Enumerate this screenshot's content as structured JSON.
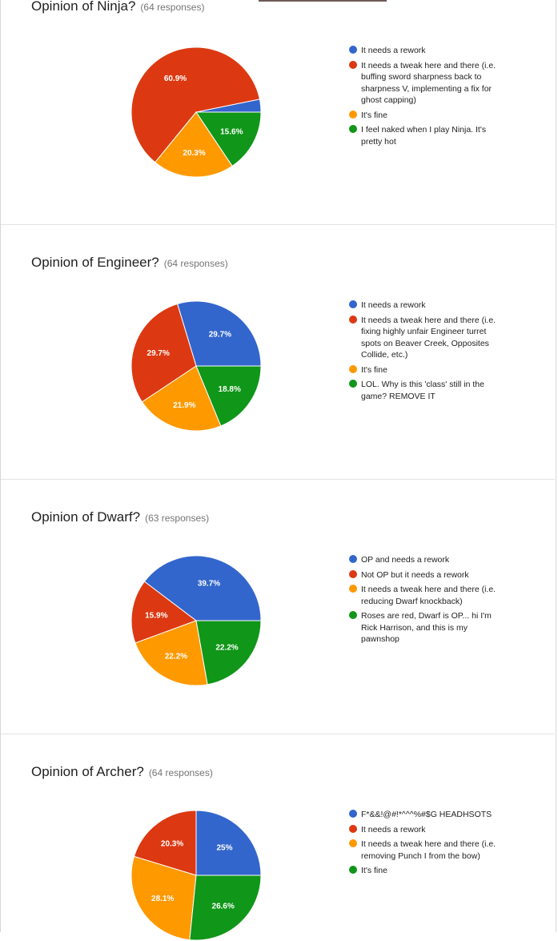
{
  "colors": [
    "#3366cc",
    "#dc3912",
    "#ff9900",
    "#109618"
  ],
  "cards": [
    {
      "title": "Opinion of Ninja?",
      "responses": "(64 responses)",
      "legend": [
        "It needs a rework",
        "It needs a tweak here and there (i.e. buffing sword sharpness back to sharpness V, implementing a fix for ghost capping)",
        "It's fine",
        "I feel naked when I play Ninja. It's pretty hot"
      ]
    },
    {
      "title": "Opinion of Engineer?",
      "responses": "(64 responses)",
      "legend": [
        "It needs a rework",
        "It needs a tweak here and there (i.e. fixing highly unfair Engineer turret spots on Beaver Creek, Opposites Collide, etc.)",
        "It's fine",
        "LOL. Why is this 'class' still in the game? REMOVE IT"
      ]
    },
    {
      "title": "Opinion of Dwarf?",
      "responses": "(63 responses)",
      "legend": [
        "OP and needs a rework",
        "Not OP but it needs a rework",
        "It needs a tweak here and there (i.e. reducing Dwarf knockback)",
        "Roses are red, Dwarf is OP... hi I'm Rick Harrison, and this is my pawnshop"
      ]
    },
    {
      "title": "Opinion of Archer?",
      "responses": "(64 responses)",
      "legend": [
        "F*&&!@#!*^^^%#$G HEADHSOTS",
        "It needs a rework",
        "It needs a tweak here and there (i.e. removing Punch I from the bow)",
        "It's fine"
      ]
    }
  ],
  "chart_data": [
    {
      "type": "pie",
      "title": "Opinion of Ninja?",
      "categories": [
        "It needs a rework",
        "It needs a tweak here and there (i.e. buffing sword sharpness back to sharpness V, implementing a fix for ghost capping)",
        "It's fine",
        "I feel naked when I play Ninja. It's pretty hot"
      ],
      "values": [
        3.2,
        60.9,
        20.3,
        15.6
      ],
      "labels": [
        "",
        "60.9%",
        "20.3%",
        "15.6%"
      ],
      "legend_position": "right"
    },
    {
      "type": "pie",
      "title": "Opinion of Engineer?",
      "categories": [
        "It needs a rework",
        "It needs a tweak here and there (i.e. fixing highly unfair Engineer turret spots on Beaver Creek, Opposites Collide, etc.)",
        "It's fine",
        "LOL. Why is this 'class' still in the game? REMOVE IT"
      ],
      "values": [
        29.7,
        29.7,
        21.9,
        18.8
      ],
      "labels": [
        "29.7%",
        "29.7%",
        "21.9%",
        "18.8%"
      ],
      "legend_position": "right"
    },
    {
      "type": "pie",
      "title": "Opinion of Dwarf?",
      "categories": [
        "OP and needs a rework",
        "Not OP but it needs a rework",
        "It needs a tweak here and there (i.e. reducing Dwarf knockback)",
        "Roses are red, Dwarf is OP... hi I'm Rick Harrison, and this is my pawnshop"
      ],
      "values": [
        39.7,
        15.9,
        22.2,
        22.2
      ],
      "labels": [
        "39.7%",
        "15.9%",
        "22.2%",
        "22.2%"
      ],
      "legend_position": "right"
    },
    {
      "type": "pie",
      "title": "Opinion of Archer?",
      "categories": [
        "F*&&!@#!*^^^%#$G HEADHSOTS",
        "It needs a rework",
        "It needs a tweak here and there (i.e. removing Punch I from the bow)",
        "It's fine"
      ],
      "values": [
        25,
        20.3,
        28.1,
        26.6
      ],
      "labels": [
        "25%",
        "20.3%",
        "28.1%",
        "26.6%"
      ],
      "legend_position": "right"
    }
  ]
}
